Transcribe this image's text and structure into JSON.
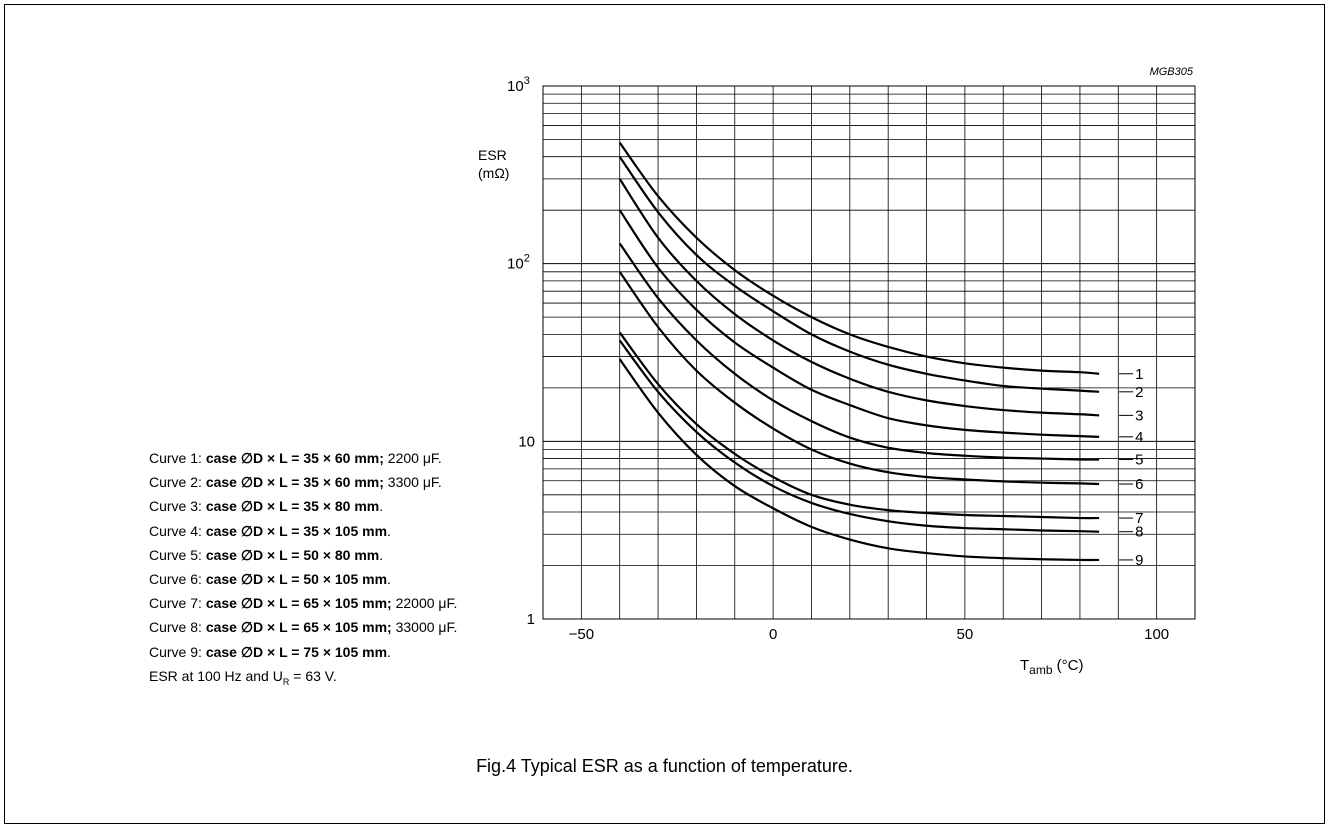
{
  "figure_code": "MGB305",
  "caption": "Fig.4  Typical ESR as a function of temperature.",
  "legend": [
    {
      "prefix": "Curve 1: ",
      "spec": "case ∅D × L = 35 × 60 mm;",
      "suffix": " 2200 μF."
    },
    {
      "prefix": "Curve 2: ",
      "spec": "case ∅D × L = 35 × 60 mm;",
      "suffix": " 3300 μF."
    },
    {
      "prefix": "Curve 3: ",
      "spec": "case ∅D × L = 35 × 80 mm",
      "suffix": "."
    },
    {
      "prefix": "Curve 4: ",
      "spec": "case ∅D × L = 35 × 105 mm",
      "suffix": "."
    },
    {
      "prefix": "Curve 5: ",
      "spec": "case ∅D × L = 50 × 80 mm",
      "suffix": "."
    },
    {
      "prefix": "Curve 6: ",
      "spec": "case ∅D × L = 50 × 105 mm",
      "suffix": "."
    },
    {
      "prefix": "Curve 7: ",
      "spec": "case ∅D × L = 65 × 105 mm;",
      "suffix": " 22000 μF."
    },
    {
      "prefix": "Curve 8: ",
      "spec": "case ∅D × L = 65 × 105 mm;",
      "suffix": " 33000 μF."
    },
    {
      "prefix": "Curve 9: ",
      "spec": "case ∅D × L = 75 × 105 mm",
      "suffix": "."
    }
  ],
  "note": {
    "text_before": "ESR at 100 Hz and U",
    "sub": "R",
    "text_after": " = 63 V."
  },
  "chart_data": {
    "type": "line",
    "xlabel": {
      "main": "T",
      "sub": "amb",
      "unit": " (°C)"
    },
    "ylabel": {
      "line1": "ESR",
      "line2": "(mΩ)"
    },
    "x_scale": "linear",
    "y_scale": "log",
    "xlim": [
      -60,
      110
    ],
    "ylim": [
      1,
      1000
    ],
    "x_ticks": [
      -50,
      0,
      50,
      100
    ],
    "x_tick_labels": [
      "−50",
      "0",
      "50",
      "100"
    ],
    "y_ticks": [
      1,
      10,
      100,
      1000
    ],
    "y_tick_labels": [
      {
        "base": "1",
        "exp": ""
      },
      {
        "base": "10",
        "exp": ""
      },
      {
        "base": "10",
        "exp": "2"
      },
      {
        "base": "10",
        "exp": "3"
      }
    ],
    "grid": true,
    "x": [
      -40,
      -30,
      -20,
      -10,
      0,
      10,
      20,
      30,
      40,
      50,
      60,
      70,
      80,
      85
    ],
    "series": [
      {
        "name": "1",
        "values": [
          480,
          240,
          140,
          92,
          66,
          50,
          40,
          34,
          30,
          27.5,
          26,
          25,
          24.5,
          24
        ]
      },
      {
        "name": "2",
        "values": [
          400,
          195,
          112,
          75,
          54,
          40,
          32,
          27,
          24,
          22,
          20.5,
          19.8,
          19.3,
          19
        ]
      },
      {
        "name": "3",
        "values": [
          300,
          140,
          80,
          52,
          37,
          28,
          22.5,
          19,
          17,
          15.8,
          15,
          14.5,
          14.2,
          14
        ]
      },
      {
        "name": "4",
        "values": [
          200,
          95,
          55,
          36,
          26,
          19.5,
          16,
          13.5,
          12.3,
          11.6,
          11.2,
          10.9,
          10.7,
          10.6
        ]
      },
      {
        "name": "5",
        "values": [
          130,
          64,
          37,
          24,
          17,
          13,
          10.5,
          9.2,
          8.6,
          8.3,
          8.1,
          8.0,
          7.9,
          7.9
        ]
      },
      {
        "name": "6",
        "values": [
          90,
          44,
          25,
          16.5,
          11.8,
          9.0,
          7.5,
          6.7,
          6.3,
          6.1,
          5.95,
          5.85,
          5.8,
          5.75
        ]
      },
      {
        "name": "7",
        "values": [
          41,
          21,
          12.5,
          8.5,
          6.3,
          5.0,
          4.4,
          4.1,
          3.95,
          3.85,
          3.8,
          3.75,
          3.7,
          3.7
        ]
      },
      {
        "name": "8",
        "values": [
          37,
          19,
          11.3,
          7.6,
          5.6,
          4.5,
          3.9,
          3.55,
          3.35,
          3.25,
          3.2,
          3.15,
          3.12,
          3.1
        ]
      },
      {
        "name": "9",
        "values": [
          29,
          14.5,
          8.4,
          5.6,
          4.2,
          3.3,
          2.8,
          2.5,
          2.35,
          2.25,
          2.2,
          2.17,
          2.15,
          2.15
        ]
      }
    ]
  }
}
